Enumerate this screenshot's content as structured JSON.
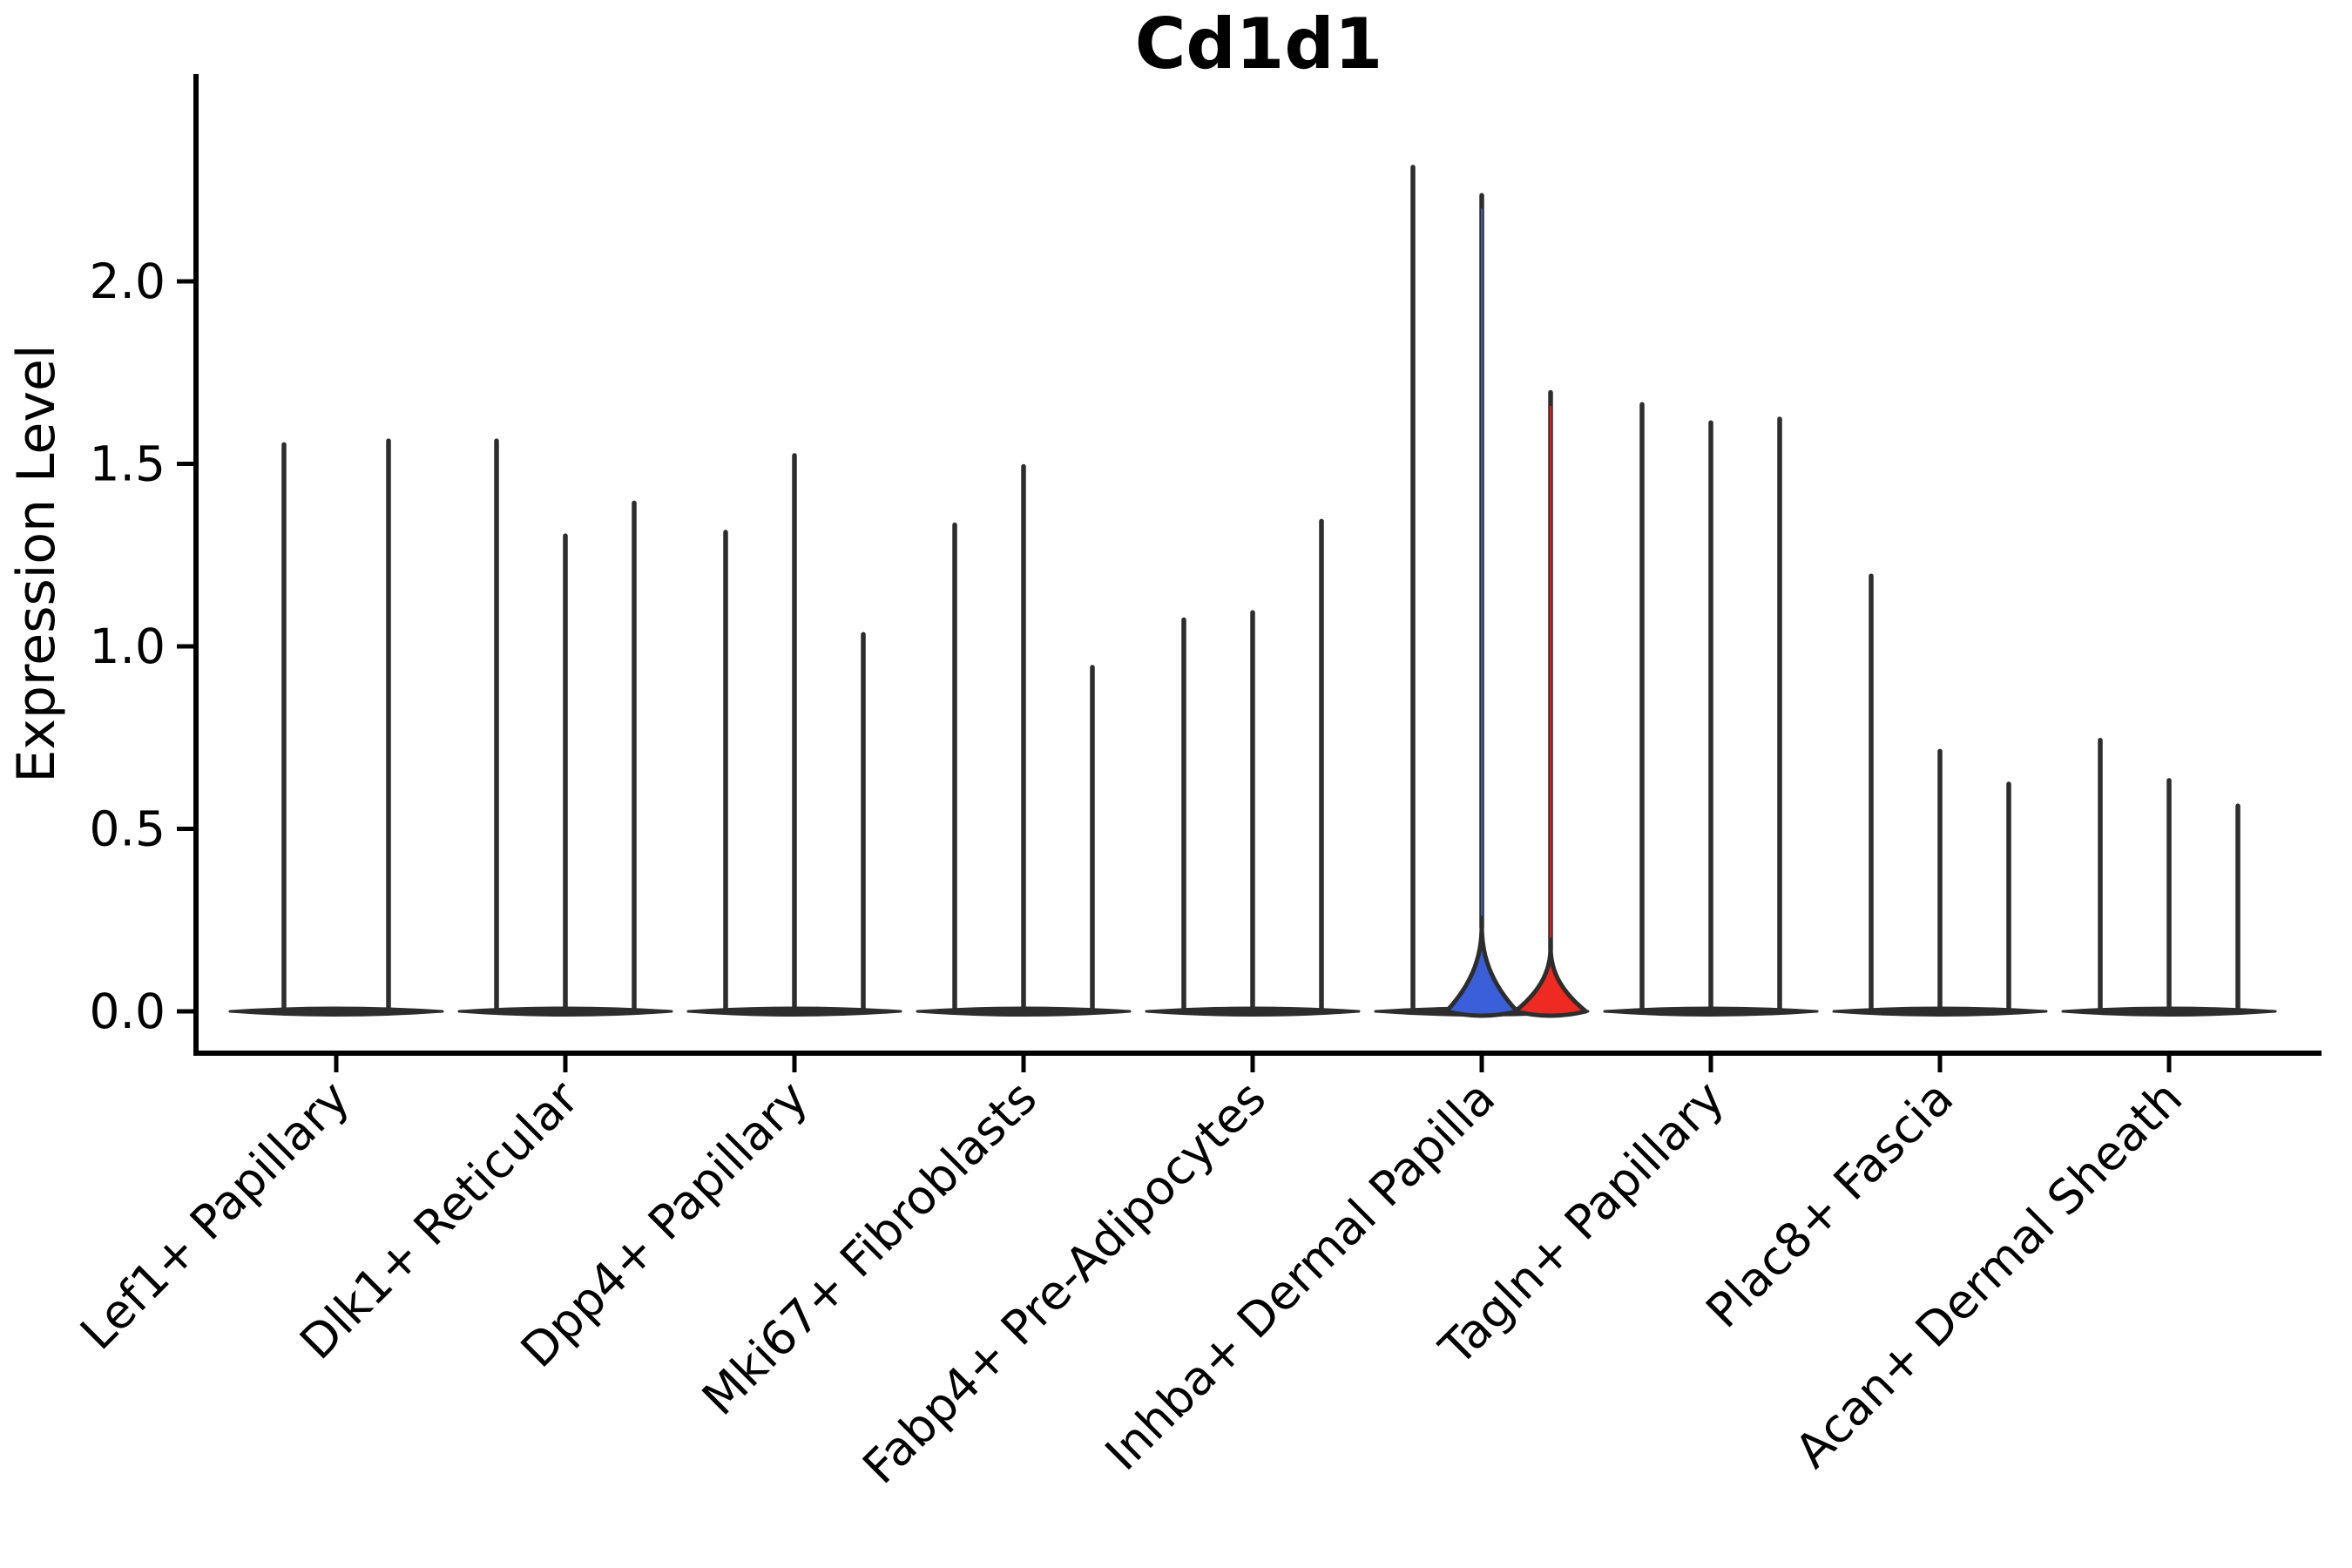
{
  "title": "Cd1d1",
  "chart_data": {
    "type": "violin",
    "title": "Cd1d1",
    "ylabel": "Expression Level",
    "xlabel": "",
    "ylim": [
      -0.12,
      2.45
    ],
    "yticks": [
      0.0,
      0.5,
      1.0,
      1.5,
      2.0
    ],
    "ytick_labels": [
      "0.0",
      "0.5",
      "1.0",
      "1.5",
      "2.0"
    ],
    "grid": false,
    "legend_position": "none",
    "x_label_rotation_deg": 45,
    "categories": [
      "Lef1+ Papillary",
      "Dlk1+ Reticular",
      "Dpp4+ Papillary",
      "Mki67+ Fibroblasts",
      "Fabp4+ Pre-Adipocytes",
      "Inhba+ Dermal Papilla",
      "Tagln+ Papillary",
      "Plac8+ Fascia",
      "Acan+ Dermal Sheath"
    ],
    "groups": [
      {
        "label": "Lef1+ Papillary",
        "violins": [
          {
            "max": 1.56,
            "color": "dark"
          },
          {
            "max": 1.57,
            "color": "dark"
          }
        ]
      },
      {
        "label": "Dlk1+ Reticular",
        "violins": [
          {
            "max": 1.57,
            "color": "dark"
          },
          {
            "max": 1.31,
            "color": "dark"
          },
          {
            "max": 1.4,
            "color": "dark"
          }
        ]
      },
      {
        "label": "Dpp4+ Papillary",
        "violins": [
          {
            "max": 1.32,
            "color": "dark"
          },
          {
            "max": 1.53,
            "color": "dark"
          },
          {
            "max": 1.04,
            "color": "dark"
          }
        ]
      },
      {
        "label": "Mki67+ Fibroblasts",
        "violins": [
          {
            "max": 1.34,
            "color": "dark"
          },
          {
            "max": 1.5,
            "color": "dark"
          },
          {
            "max": 0.95,
            "color": "dark"
          }
        ]
      },
      {
        "label": "Fabp4+ Pre-Adipocytes",
        "violins": [
          {
            "max": 1.08,
            "color": "dark"
          },
          {
            "max": 1.1,
            "color": "dark"
          },
          {
            "max": 1.35,
            "color": "dark"
          }
        ]
      },
      {
        "label": "Inhba+ Dermal Papilla",
        "violins": [
          {
            "max": 2.32,
            "color": "dark"
          },
          {
            "max": 2.25,
            "color": "blue",
            "bulge_top": 0.24
          },
          {
            "max": 1.71,
            "color": "red",
            "bulge_top": 0.18
          }
        ]
      },
      {
        "label": "Tagln+ Papillary",
        "violins": [
          {
            "max": 1.67,
            "color": "dark"
          },
          {
            "max": 1.62,
            "color": "dark"
          },
          {
            "max": 1.63,
            "color": "dark"
          }
        ]
      },
      {
        "label": "Plac8+ Fascia",
        "violins": [
          {
            "max": 1.2,
            "color": "dark"
          },
          {
            "max": 0.72,
            "color": "dark"
          },
          {
            "max": 0.63,
            "color": "dark"
          }
        ]
      },
      {
        "label": "Acan+ Dermal Sheath",
        "violins": [
          {
            "max": 0.75,
            "color": "dark"
          },
          {
            "max": 0.64,
            "color": "dark"
          },
          {
            "max": 0.57,
            "color": "dark"
          }
        ]
      }
    ],
    "colors": {
      "violin_dark": "#2d2d2d",
      "blue_fill": "#3b5fd8",
      "red_fill": "#ee2a22",
      "axis": "#000000"
    }
  }
}
